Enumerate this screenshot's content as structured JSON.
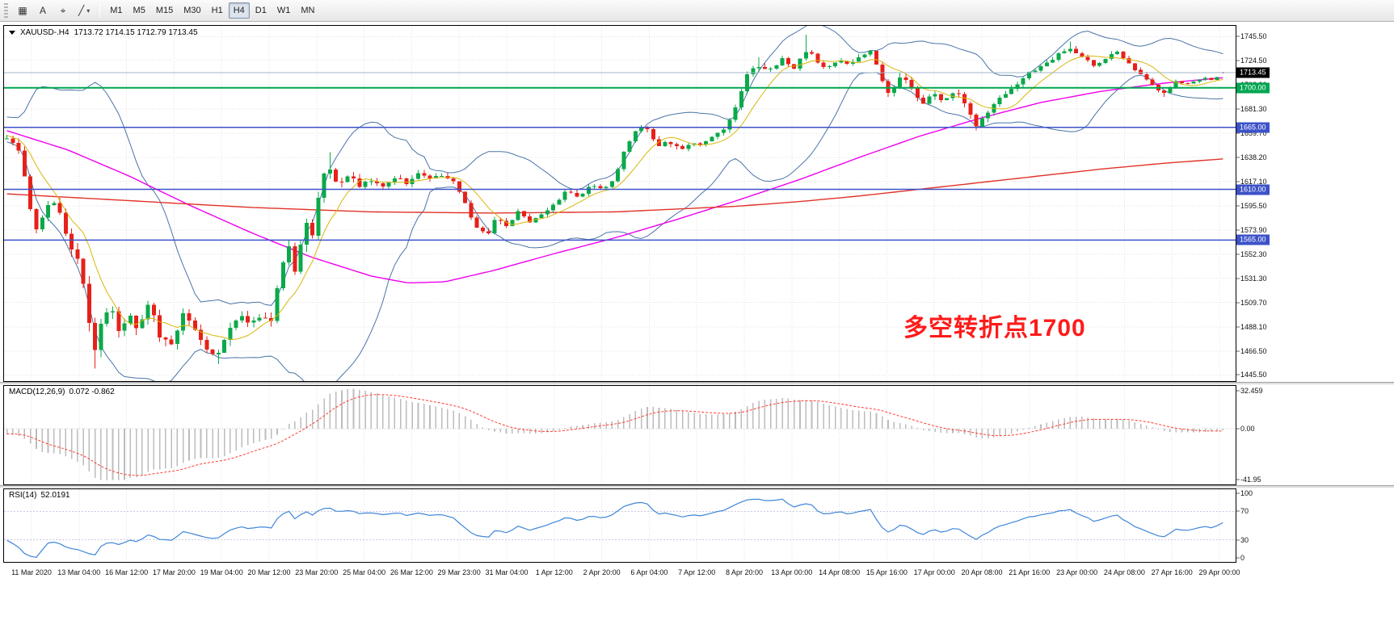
{
  "toolbar": {
    "icons": [
      {
        "name": "chart-grid-icon",
        "glyph": "▦",
        "caret": false
      },
      {
        "name": "text-label-icon",
        "glyph": "A",
        "caret": false
      },
      {
        "name": "crosshair-icon",
        "glyph": "⌖",
        "caret": false
      },
      {
        "name": "line-studies-dropdown-icon",
        "glyph": "╱",
        "caret": true
      }
    ],
    "timeframes": [
      {
        "label": "M1",
        "active": false
      },
      {
        "label": "M5",
        "active": false
      },
      {
        "label": "M15",
        "active": false
      },
      {
        "label": "M30",
        "active": false
      },
      {
        "label": "H1",
        "active": false
      },
      {
        "label": "H4",
        "active": true
      },
      {
        "label": "D1",
        "active": false
      },
      {
        "label": "W1",
        "active": false
      },
      {
        "label": "MN",
        "active": false
      }
    ]
  },
  "chart_data": {
    "type": "candlestick",
    "symbol": "XAUUSD-",
    "period": "H4",
    "title": "XAUUSD-.H4",
    "ohlc_label": "1713.72 1714.15 1712.79 1713.45",
    "open": 1713.72,
    "high": 1714.15,
    "low": 1712.79,
    "close": 1713.45,
    "price_axis": {
      "min": 1440,
      "max": 1755,
      "ticks": [
        "1745.50",
        "1724.50",
        "1702.90",
        "1681.30",
        "1659.70",
        "1638.20",
        "1617.10",
        "1595.50",
        "1573.90",
        "1552.30",
        "1531.30",
        "1509.70",
        "1488.10",
        "1466.50",
        "1445.50"
      ]
    },
    "x_labels": [
      "11 Mar 2020",
      "13 Mar 04:00",
      "16 Mar 12:00",
      "17 Mar 20:00",
      "19 Mar 04:00",
      "20 Mar 12:00",
      "23 Mar 20:00",
      "25 Mar 04:00",
      "26 Mar 12:00",
      "29 Mar 23:00",
      "31 Mar 04:00",
      "1 Apr 12:00",
      "2 Apr 20:00",
      "6 Apr 04:00",
      "7 Apr 12:00",
      "8 Apr 20:00",
      "13 Apr 00:00",
      "14 Apr 08:00",
      "15 Apr 16:00",
      "17 Apr 00:00",
      "20 Apr 08:00",
      "21 Apr 16:00",
      "23 Apr 00:00",
      "24 Apr 08:00",
      "27 Apr 16:00",
      "29 Apr 00:00"
    ],
    "current_price_tag": {
      "label": "1713.45",
      "bg": "#000000",
      "line_color": "#9fb6c9"
    },
    "horizontal_lines": [
      {
        "price": 1700.0,
        "label": "1700.00",
        "color": "#00a651",
        "width": 2
      },
      {
        "price": 1665.0,
        "label": "1665.00",
        "color": "#3c52c8",
        "width": 1.5
      },
      {
        "price": 1610.0,
        "label": "1610.00",
        "color": "#3c52c8",
        "width": 1.5
      },
      {
        "price": 1565.0,
        "label": "1565.00",
        "color": "#3c52c8",
        "width": 1.5
      }
    ],
    "annotation": {
      "text": "多空转折点1700",
      "color": "#ff1a1a"
    },
    "candles": {
      "count": 208,
      "seed": 7,
      "bull": "#0ba94a",
      "bear": "#e6211a",
      "spikes": [
        {
          "t": 0.071,
          "low": 1451
        },
        {
          "t": 0.172,
          "low": 1455
        },
        {
          "t": 0.264,
          "high": 1643
        },
        {
          "t": 0.618,
          "high": 1727
        },
        {
          "t": 0.658,
          "high": 1747
        },
        {
          "t": 0.875,
          "high": 1741
        },
        {
          "t": 0.953,
          "low": 1692
        }
      ]
    },
    "price_path": [
      [
        0,
        1655
      ],
      [
        0.01,
        1643
      ],
      [
        0.023,
        1575
      ],
      [
        0.033,
        1593
      ],
      [
        0.041,
        1601
      ],
      [
        0.049,
        1570
      ],
      [
        0.058,
        1548
      ],
      [
        0.066,
        1506
      ],
      [
        0.071,
        1458
      ],
      [
        0.078,
        1490
      ],
      [
        0.084,
        1512
      ],
      [
        0.092,
        1480
      ],
      [
        0.1,
        1500
      ],
      [
        0.109,
        1486
      ],
      [
        0.117,
        1510
      ],
      [
        0.125,
        1478
      ],
      [
        0.135,
        1472
      ],
      [
        0.145,
        1498
      ],
      [
        0.155,
        1482
      ],
      [
        0.164,
        1470
      ],
      [
        0.172,
        1460
      ],
      [
        0.181,
        1486
      ],
      [
        0.191,
        1500
      ],
      [
        0.201,
        1490
      ],
      [
        0.209,
        1498
      ],
      [
        0.217,
        1493
      ],
      [
        0.225,
        1535
      ],
      [
        0.232,
        1560
      ],
      [
        0.237,
        1532
      ],
      [
        0.245,
        1585
      ],
      [
        0.25,
        1558
      ],
      [
        0.258,
        1615
      ],
      [
        0.264,
        1632
      ],
      [
        0.273,
        1612
      ],
      [
        0.282,
        1625
      ],
      [
        0.289,
        1610
      ],
      [
        0.299,
        1618
      ],
      [
        0.309,
        1612
      ],
      [
        0.319,
        1620
      ],
      [
        0.329,
        1616
      ],
      [
        0.339,
        1625
      ],
      [
        0.349,
        1618
      ],
      [
        0.359,
        1624
      ],
      [
        0.368,
        1616
      ],
      [
        0.376,
        1598
      ],
      [
        0.385,
        1578
      ],
      [
        0.395,
        1570
      ],
      [
        0.403,
        1586
      ],
      [
        0.411,
        1578
      ],
      [
        0.421,
        1590
      ],
      [
        0.431,
        1580
      ],
      [
        0.441,
        1590
      ],
      [
        0.451,
        1598
      ],
      [
        0.461,
        1610
      ],
      [
        0.47,
        1604
      ],
      [
        0.48,
        1613
      ],
      [
        0.49,
        1610
      ],
      [
        0.5,
        1620
      ],
      [
        0.508,
        1645
      ],
      [
        0.516,
        1660
      ],
      [
        0.525,
        1668
      ],
      [
        0.534,
        1648
      ],
      [
        0.543,
        1652
      ],
      [
        0.553,
        1645
      ],
      [
        0.563,
        1653
      ],
      [
        0.572,
        1648
      ],
      [
        0.582,
        1658
      ],
      [
        0.592,
        1665
      ],
      [
        0.6,
        1685
      ],
      [
        0.609,
        1712
      ],
      [
        0.618,
        1720
      ],
      [
        0.628,
        1716
      ],
      [
        0.638,
        1726
      ],
      [
        0.648,
        1718
      ],
      [
        0.658,
        1735
      ],
      [
        0.666,
        1722
      ],
      [
        0.674,
        1716
      ],
      [
        0.684,
        1726
      ],
      [
        0.694,
        1720
      ],
      [
        0.704,
        1730
      ],
      [
        0.712,
        1734
      ],
      [
        0.718,
        1708
      ],
      [
        0.727,
        1694
      ],
      [
        0.736,
        1710
      ],
      [
        0.743,
        1700
      ],
      [
        0.753,
        1686
      ],
      [
        0.762,
        1696
      ],
      [
        0.77,
        1688
      ],
      [
        0.78,
        1698
      ],
      [
        0.788,
        1684
      ],
      [
        0.797,
        1664
      ],
      [
        0.806,
        1678
      ],
      [
        0.816,
        1690
      ],
      [
        0.826,
        1698
      ],
      [
        0.835,
        1708
      ],
      [
        0.845,
        1716
      ],
      [
        0.855,
        1722
      ],
      [
        0.865,
        1730
      ],
      [
        0.875,
        1736
      ],
      [
        0.885,
        1726
      ],
      [
        0.895,
        1720
      ],
      [
        0.905,
        1728
      ],
      [
        0.914,
        1732
      ],
      [
        0.924,
        1720
      ],
      [
        0.934,
        1710
      ],
      [
        0.944,
        1700
      ],
      [
        0.953,
        1696
      ],
      [
        0.962,
        1706
      ],
      [
        0.972,
        1703
      ],
      [
        0.982,
        1709
      ],
      [
        0.991,
        1707
      ],
      [
        1,
        1713.4
      ]
    ],
    "volatility": [
      [
        0,
        8
      ],
      [
        0.04,
        10
      ],
      [
        0.06,
        15
      ],
      [
        0.08,
        16
      ],
      [
        0.1,
        13
      ],
      [
        0.14,
        12
      ],
      [
        0.18,
        11
      ],
      [
        0.22,
        12
      ],
      [
        0.25,
        13
      ],
      [
        0.28,
        9
      ],
      [
        0.32,
        7
      ],
      [
        0.36,
        6
      ],
      [
        0.4,
        7
      ],
      [
        0.44,
        5
      ],
      [
        0.5,
        5
      ],
      [
        0.55,
        6
      ],
      [
        0.6,
        7
      ],
      [
        0.65,
        6
      ],
      [
        0.7,
        6
      ],
      [
        0.72,
        9
      ],
      [
        0.76,
        7
      ],
      [
        0.8,
        8
      ],
      [
        0.84,
        6
      ],
      [
        0.88,
        5
      ],
      [
        0.92,
        5
      ],
      [
        0.96,
        4
      ],
      [
        1,
        2
      ]
    ],
    "overlays": {
      "bollinger": {
        "period": 20,
        "deviation": 2,
        "color": "#4a74a8"
      },
      "ma_fast": {
        "period": 8,
        "color": "#d8b70a"
      },
      "ma_magenta": {
        "color": "#ee00ee",
        "path": [
          [
            0,
            1662
          ],
          [
            0.05,
            1645
          ],
          [
            0.1,
            1622
          ],
          [
            0.15,
            1596
          ],
          [
            0.2,
            1572
          ],
          [
            0.25,
            1550
          ],
          [
            0.3,
            1533
          ],
          [
            0.33,
            1527
          ],
          [
            0.36,
            1528
          ],
          [
            0.4,
            1538
          ],
          [
            0.45,
            1553
          ],
          [
            0.5,
            1567
          ],
          [
            0.55,
            1583
          ],
          [
            0.6,
            1600
          ],
          [
            0.65,
            1618
          ],
          [
            0.7,
            1638
          ],
          [
            0.75,
            1657
          ],
          [
            0.8,
            1673
          ],
          [
            0.85,
            1687
          ],
          [
            0.9,
            1697
          ],
          [
            0.95,
            1704
          ],
          [
            1,
            1709
          ]
        ]
      },
      "ma_red": {
        "color": "#e03228",
        "path": [
          [
            0,
            1606
          ],
          [
            0.1,
            1600
          ],
          [
            0.2,
            1594
          ],
          [
            0.3,
            1590
          ],
          [
            0.4,
            1589
          ],
          [
            0.5,
            1590
          ],
          [
            0.6,
            1595
          ],
          [
            0.65,
            1599
          ],
          [
            0.7,
            1604
          ],
          [
            0.75,
            1610
          ],
          [
            0.8,
            1616
          ],
          [
            0.85,
            1622
          ],
          [
            0.9,
            1628
          ],
          [
            0.95,
            1633
          ],
          [
            1,
            1637
          ]
        ]
      }
    },
    "macd": {
      "label": "MACD(12,26,9)",
      "values": "0.072 -0.862",
      "scale": [
        "32.459",
        "0.00",
        "-41.95"
      ],
      "histogram_color": "#bcbcbc",
      "signal_color": "#ff3b30"
    },
    "rsi": {
      "label": "RSI(14)",
      "value": "52.0191",
      "period": 14,
      "levels": [
        "100",
        "70",
        "30",
        "0"
      ],
      "color": "#3f86d8"
    }
  }
}
